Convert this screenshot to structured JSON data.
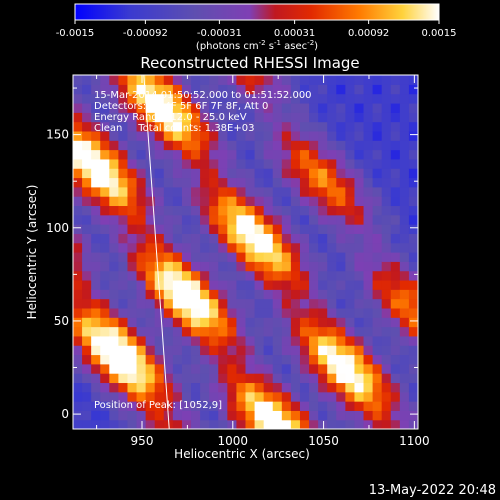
{
  "colorbar": {
    "ticks": [
      "-0.0015",
      "-0.00092",
      "-0.00031",
      "0.00031",
      "0.00092",
      "0.0015"
    ],
    "tick_values": [
      -0.0015,
      -0.00092,
      -0.00031,
      0.00031,
      0.00092,
      0.0015
    ],
    "range": [
      -0.0015,
      0.0015
    ],
    "units_main": "(photons cm",
    "units_exp1": "-2",
    "units_mid": " s",
    "units_exp2": "-1",
    "units_end": " asec",
    "units_exp3": "-2",
    "units_close": ")",
    "colormap": [
      "#0000ff",
      "#3a3ad0",
      "#5e4fb0",
      "#7f3fb4",
      "#c01820",
      "#e22a00",
      "#ff7a00",
      "#ffd23c",
      "#ffffff"
    ]
  },
  "title": "Reconstructed RHESSI Image",
  "info": {
    "line1": "15-Mar-2014 01:50:52.000 to 01:51:52.000",
    "line2": "Detectors: 3F 4F 5F 6F 7F 8F, Att 0",
    "line3": "Energy Range: 12.0 - 25.0 keV",
    "line4": "Clean     Total counts: 1.38E+03"
  },
  "peak_label": "Position of Peak: [1052,9]",
  "footer_date": "13-May-2022 20:48",
  "chart_data": {
    "type": "heatmap",
    "title": "Reconstructed RHESSI Image",
    "xlabel": "Heliocentric X (arcsec)",
    "ylabel": "Heliocentric Y (arcsec)",
    "xlim": [
      912,
      1102
    ],
    "ylim": [
      -8,
      182
    ],
    "x_ticks": [
      950,
      1000,
      1050,
      1100
    ],
    "y_ticks": [
      0,
      50,
      100,
      150
    ],
    "x_tick_labels": [
      "950",
      "1000",
      "1050",
      "1100"
    ],
    "y_tick_labels": [
      "0",
      "50",
      "100",
      "150"
    ],
    "peak": [
      1052,
      9
    ],
    "limb_line": [
      [
        951,
        182
      ],
      [
        965,
        -8
      ]
    ],
    "bands": [
      {
        "x0": 868,
        "amp": 0.75
      },
      {
        "x0": 960,
        "amp": 1.0
      },
      {
        "x0": 1020,
        "amp": 0.95
      },
      {
        "x0": 1080,
        "amp": 0.9
      },
      {
        "x0": 1140,
        "amp": 0.6
      }
    ],
    "band_slope": 0.72
  }
}
